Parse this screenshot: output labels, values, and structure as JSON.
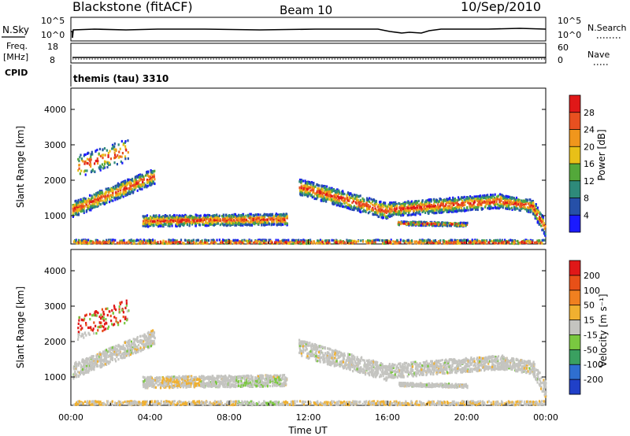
{
  "header": {
    "title": "Blackstone (fitACF)",
    "beam": "Beam 10",
    "date": "10/Sep/2010"
  },
  "info_panel": {
    "nsky_label": "N.Sky",
    "nsky_ticks": [
      "10^5",
      "10^0"
    ],
    "nsearch_label": "N.Search",
    "nsearch_ticks": [
      "10^5",
      "10^0"
    ],
    "freq_label": "Freq.",
    "freq_unit": "[MHz]",
    "freq_ticks": [
      "18",
      "8"
    ],
    "nave_label": "Nave",
    "nave_ticks": [
      "60",
      "0"
    ],
    "cpid_label": "CPID",
    "cpid_value": "themis (tau) 3310"
  },
  "chart_data": [
    {
      "type": "heatmap",
      "name": "power",
      "ylabel": "Slant Range [km]",
      "yticks": [
        "1000",
        "2000",
        "3000",
        "4000"
      ],
      "ylim": [
        200,
        4600
      ],
      "xlim": [
        0,
        24
      ],
      "colorbar": {
        "label": "Power [dB]",
        "ticks": [
          "4",
          "8",
          "12",
          "16",
          "20",
          "24",
          "28"
        ],
        "colors": [
          "#1a1aff",
          "#2650a8",
          "#2e8a7a",
          "#53a83a",
          "#e8c018",
          "#f0961c",
          "#e85020",
          "#e01818"
        ]
      }
    },
    {
      "type": "heatmap",
      "name": "velocity",
      "ylabel": "Slant Range [km]",
      "yticks": [
        "1000",
        "2000",
        "3000",
        "4000"
      ],
      "ylim": [
        200,
        4600
      ],
      "xlim": [
        0,
        24
      ],
      "xlabel": "Time UT",
      "xticks": [
        "00:00",
        "04:00",
        "08:00",
        "12:00",
        "16:00",
        "20:00",
        "00:00"
      ],
      "colorbar": {
        "label": "Velocity [m s⁻¹]",
        "ticks": [
          "200",
          "100",
          "50",
          "15",
          "-15",
          "-50",
          "-100",
          "-200"
        ],
        "colors": [
          "#2040c8",
          "#2f6fd0",
          "#3aa060",
          "#7ac840",
          "#c4c4c0",
          "#f0b030",
          "#f08020",
          "#e85018",
          "#e01818"
        ]
      }
    }
  ]
}
